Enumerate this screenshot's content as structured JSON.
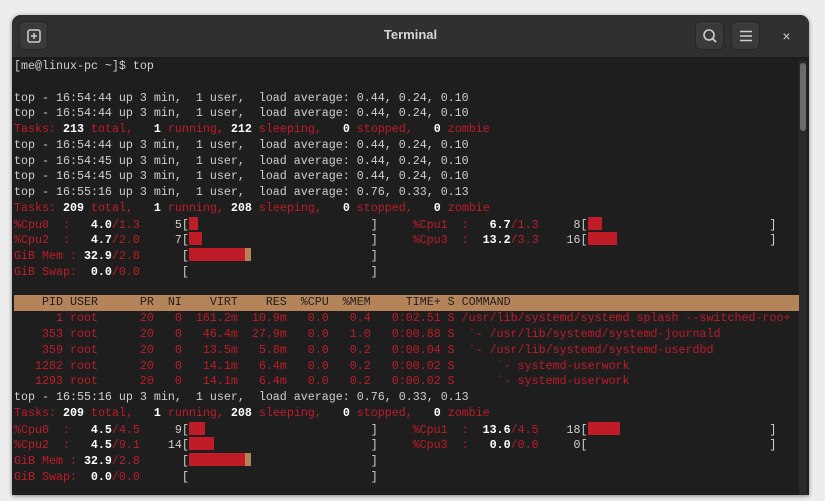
{
  "window": {
    "title": "Terminal",
    "icons": {
      "new_tab": "new-tab-icon",
      "search": "search-icon",
      "menu": "hamburger-menu-icon",
      "close": "close-icon"
    },
    "close_glyph": "×"
  },
  "colors": {
    "red": "#c01c28",
    "tan": "#b5835a",
    "background": "#1e1e1e",
    "titlebar": "#303030"
  },
  "lines": [
    {
      "type": "text",
      "segs": [
        {
          "t": "[me@linux-pc ~]$ top",
          "c": "n"
        }
      ]
    },
    {
      "type": "text",
      "segs": []
    },
    {
      "type": "text",
      "segs": [
        {
          "t": "top - 16:54:44 up 3 min,  1 user,  load average: 0.44, 0.24, 0.10",
          "c": "n"
        }
      ]
    },
    {
      "type": "text",
      "segs": [
        {
          "t": "top - 16:54:44 up 3 min,  1 user,  load average: 0.44, 0.24, 0.10",
          "c": "n"
        }
      ]
    },
    {
      "type": "text",
      "segs": [
        {
          "t": "Tasks: ",
          "c": "r"
        },
        {
          "t": "213",
          "c": "b"
        },
        {
          "t": " total,   ",
          "c": "r"
        },
        {
          "t": "1",
          "c": "b"
        },
        {
          "t": " running, ",
          "c": "r"
        },
        {
          "t": "212",
          "c": "b"
        },
        {
          "t": " sleeping,   ",
          "c": "r"
        },
        {
          "t": "0",
          "c": "b"
        },
        {
          "t": " stopped,   ",
          "c": "r"
        },
        {
          "t": "0",
          "c": "b"
        },
        {
          "t": " zombie",
          "c": "r"
        }
      ]
    },
    {
      "type": "text",
      "segs": [
        {
          "t": "top - 16:54:44 up 3 min,  1 user,  load average: 0.44, 0.24, 0.10",
          "c": "n"
        }
      ]
    },
    {
      "type": "text",
      "segs": [
        {
          "t": "top - 16:54:45 up 3 min,  1 user,  load average: 0.44, 0.24, 0.10",
          "c": "n"
        }
      ]
    },
    {
      "type": "text",
      "segs": [
        {
          "t": "top - 16:54:45 up 3 min,  1 user,  load average: 0.44, 0.24, 0.10",
          "c": "n"
        }
      ]
    },
    {
      "type": "text",
      "segs": [
        {
          "t": "top - 16:55:16 up 3 min,  1 user,  load average: 0.76, 0.33, 0.13",
          "c": "n"
        }
      ]
    },
    {
      "type": "text",
      "segs": [
        {
          "t": "Tasks: ",
          "c": "r"
        },
        {
          "t": "209",
          "c": "b"
        },
        {
          "t": " total,   ",
          "c": "r"
        },
        {
          "t": "1",
          "c": "b"
        },
        {
          "t": " running, ",
          "c": "r"
        },
        {
          "t": "208",
          "c": "b"
        },
        {
          "t": " sleeping,   ",
          "c": "r"
        },
        {
          "t": "0",
          "c": "b"
        },
        {
          "t": " stopped,   ",
          "c": "r"
        },
        {
          "t": "0",
          "c": "b"
        },
        {
          "t": " zombie",
          "c": "r"
        }
      ]
    },
    {
      "type": "meters",
      "meters": [
        {
          "label": "%Cpu0  :",
          "value": "4.0",
          "limit": "/1.3",
          "count": "5",
          "fill": 0.05
        },
        {
          "label": "%Cpu1  :",
          "value": "6.7",
          "limit": "/1.3",
          "count": "8",
          "fill": 0.08
        }
      ]
    },
    {
      "type": "meters",
      "meters": [
        {
          "label": "%Cpu2  :",
          "value": "4.7",
          "limit": "/2.0",
          "count": "7",
          "fill": 0.07
        },
        {
          "label": "%Cpu3  :",
          "value": "13.2",
          "limit": "/3.3",
          "count": "16",
          "fill": 0.16
        }
      ]
    },
    {
      "type": "meters",
      "meters": [
        {
          "label": "GiB Mem :",
          "value": "32.9",
          "limit": "/2.8",
          "count": "",
          "fill": 0.31,
          "fill2": 0.03
        }
      ]
    },
    {
      "type": "meters",
      "meters": [
        {
          "label": "GiB Swap:",
          "value": "0.0",
          "limit": "/0.0",
          "count": "",
          "fill": 0
        }
      ]
    },
    {
      "type": "text",
      "segs": []
    },
    {
      "type": "header",
      "segs": [
        {
          "t": "    PID USER      PR  NI    VIRT    RES  %CPU  %MEM     TIME+ S COMMAND",
          "c": ""
        }
      ]
    },
    {
      "type": "row",
      "segs": [
        {
          "t": "      1 root      20   0  161.2m  10.9m   0.0   0.4   0:02.51 S /usr/lib/systemd/systemd splash --switched-roo+",
          "c": ""
        }
      ]
    },
    {
      "type": "row",
      "segs": [
        {
          "t": "    353 root      20   0   46.4m  27.9m   0.0   1.0   0:00.88 S  `- /usr/lib/systemd/systemd-journald",
          "c": ""
        }
      ]
    },
    {
      "type": "row",
      "segs": [
        {
          "t": "    359 root      20   0   13.5m   5.8m   0.0   0.2   0:00.04 S  `- /usr/lib/systemd/systemd-userdbd",
          "c": ""
        }
      ]
    },
    {
      "type": "row",
      "segs": [
        {
          "t": "   1282 root      20   0   14.1m   6.4m   0.0   0.2   0:00.02 S      `- systemd-userwork",
          "c": ""
        }
      ]
    },
    {
      "type": "row",
      "segs": [
        {
          "t": "   1293 root      20   0   14.1m   6.4m   0.0   0.2   0:00.02 S      `- systemd-userwork",
          "c": ""
        }
      ]
    },
    {
      "type": "text",
      "segs": [
        {
          "t": "top - 16:55:16 up 3 min,  1 user,  load average: 0.76, 0.33, 0.13",
          "c": "n"
        }
      ]
    },
    {
      "type": "text",
      "segs": [
        {
          "t": "Tasks: ",
          "c": "r"
        },
        {
          "t": "209",
          "c": "b"
        },
        {
          "t": " total,   ",
          "c": "r"
        },
        {
          "t": "1",
          "c": "b"
        },
        {
          "t": " running, ",
          "c": "r"
        },
        {
          "t": "208",
          "c": "b"
        },
        {
          "t": " sleeping,   ",
          "c": "r"
        },
        {
          "t": "0",
          "c": "b"
        },
        {
          "t": " stopped,   ",
          "c": "r"
        },
        {
          "t": "0",
          "c": "b"
        },
        {
          "t": " zombie",
          "c": "r"
        }
      ]
    },
    {
      "type": "meters",
      "meters": [
        {
          "label": "%Cpu0  :",
          "value": "4.5",
          "limit": "/4.5",
          "count": "9",
          "fill": 0.09
        },
        {
          "label": "%Cpu1  :",
          "value": "13.6",
          "limit": "/4.5",
          "count": "18",
          "fill": 0.18
        }
      ]
    },
    {
      "type": "meters",
      "meters": [
        {
          "label": "%Cpu2  :",
          "value": "4.5",
          "limit": "/9.1",
          "count": "14",
          "fill": 0.14
        },
        {
          "label": "%Cpu3  :",
          "value": "0.0",
          "limit": "/0.0",
          "count": "0",
          "fill": 0
        }
      ]
    },
    {
      "type": "meters",
      "meters": [
        {
          "label": "GiB Mem :",
          "value": "32.9",
          "limit": "/2.8",
          "count": "",
          "fill": 0.31,
          "fill2": 0.03
        }
      ]
    },
    {
      "type": "meters",
      "meters": [
        {
          "label": "GiB Swap:",
          "value": "0.0",
          "limit": "/0.0",
          "count": "",
          "fill": 0
        }
      ]
    }
  ]
}
